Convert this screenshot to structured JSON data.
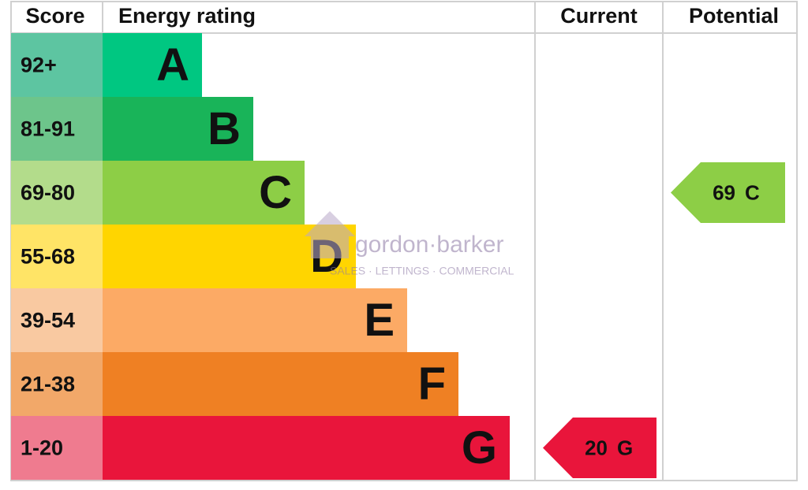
{
  "headers": {
    "score": "Score",
    "energy_rating": "Energy rating",
    "current": "Current",
    "potential": "Potential"
  },
  "bands": [
    {
      "score": "92+",
      "rating": "A",
      "color": "#00c781",
      "score_color": "#5dc5a1"
    },
    {
      "score": "81-91",
      "rating": "B",
      "color": "#19b459",
      "score_color": "#6dc58b"
    },
    {
      "score": "69-80",
      "rating": "C",
      "color": "#8dce46",
      "score_color": "#b3dc8b"
    },
    {
      "score": "55-68",
      "rating": "D",
      "color": "#ffd500",
      "score_color": "#ffe466"
    },
    {
      "score": "39-54",
      "rating": "E",
      "color": "#fcaa65",
      "score_color": "#f9c9a1"
    },
    {
      "score": "21-38",
      "rating": "F",
      "color": "#ef8023",
      "score_color": "#f2a869"
    },
    {
      "score": "1-20",
      "rating": "G",
      "color": "#e9153b",
      "score_color": "#ef7b8f"
    }
  ],
  "current": {
    "value": 20,
    "rating": "G"
  },
  "potential": {
    "value": 69,
    "rating": "C"
  },
  "watermark": {
    "brand": "gordon·barker",
    "tagline": "SALES · LETTINGS · COMMERCIAL"
  }
}
